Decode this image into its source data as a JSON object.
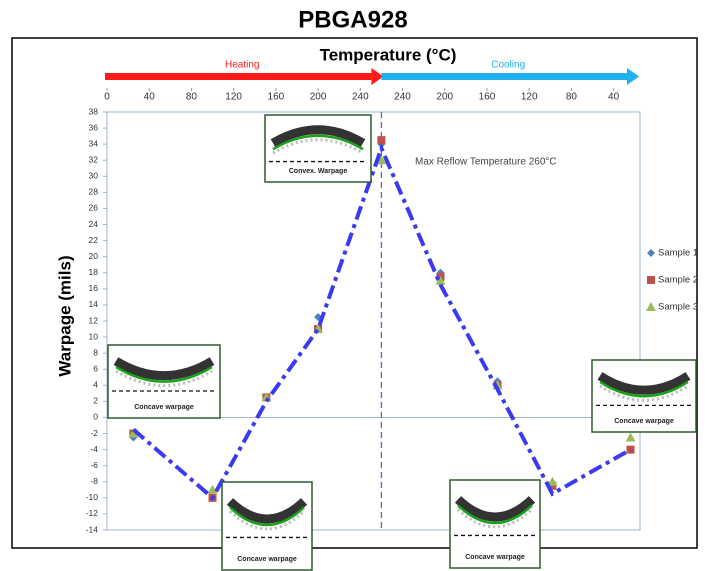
{
  "chart_data": {
    "type": "scatter",
    "title": "PBGA928",
    "x_label": "Temperature (°C)",
    "y_label": "Warpage (mils)",
    "annotation": "Max Reflow Temperature 260°C",
    "reference_x": 260,
    "phases": [
      {
        "label": "Heating",
        "color": "#ff1a1a"
      },
      {
        "label": "Cooling",
        "color": "#1fb0ee"
      }
    ],
    "xlim": [
      0,
      505
    ],
    "xticks": [
      0,
      40,
      80,
      120,
      160,
      200,
      240,
      {
        "value": 280,
        "label": "240"
      },
      {
        "value": 320,
        "label": "200"
      },
      {
        "value": 360,
        "label": "160"
      },
      {
        "value": 400,
        "label": "120"
      },
      {
        "value": 440,
        "label": "80"
      },
      {
        "value": 480,
        "label": "40"
      }
    ],
    "ylim": [
      -14,
      38
    ],
    "yticks": [
      -14,
      -12,
      -10,
      -8,
      -6,
      -4,
      -2,
      0,
      2,
      4,
      6,
      8,
      10,
      12,
      14,
      16,
      18,
      20,
      22,
      24,
      26,
      28,
      30,
      32,
      34,
      36,
      38
    ],
    "x": [
      25,
      100,
      151,
      200,
      260,
      316,
      370,
      422,
      496
    ],
    "series": [
      {
        "name": "Sample 1",
        "color": "#4f81bd",
        "marker": "diamond",
        "values": [
          -2.5,
          -10,
          2.5,
          12.5,
          34,
          18,
          4.5,
          -8.5,
          -4
        ]
      },
      {
        "name": "Sample 2",
        "color": "#c0504d",
        "marker": "square",
        "values": [
          -2,
          -10,
          2.5,
          11,
          34.5,
          17.5,
          4,
          -8.5,
          -4
        ]
      },
      {
        "name": "Sample 3",
        "color": "#9bbb59",
        "marker": "triangle",
        "values": [
          -2,
          -9,
          2.5,
          11,
          32,
          17,
          4,
          -8,
          -2.5
        ]
      }
    ],
    "trend": {
      "color": "#3a3af0",
      "values": [
        -1.5,
        -10,
        2,
        11,
        33.5,
        16.5,
        3.5,
        -9.5,
        -4
      ]
    },
    "insets": [
      {
        "label": "Convex. Warpage",
        "shape": "convex"
      },
      {
        "label": "Concave warpage",
        "shape": "concave"
      },
      {
        "label": "Concave warpage",
        "shape": "concave"
      },
      {
        "label": "Concave warpage",
        "shape": "concave"
      },
      {
        "label": "Concave warpage",
        "shape": "concave"
      }
    ]
  }
}
